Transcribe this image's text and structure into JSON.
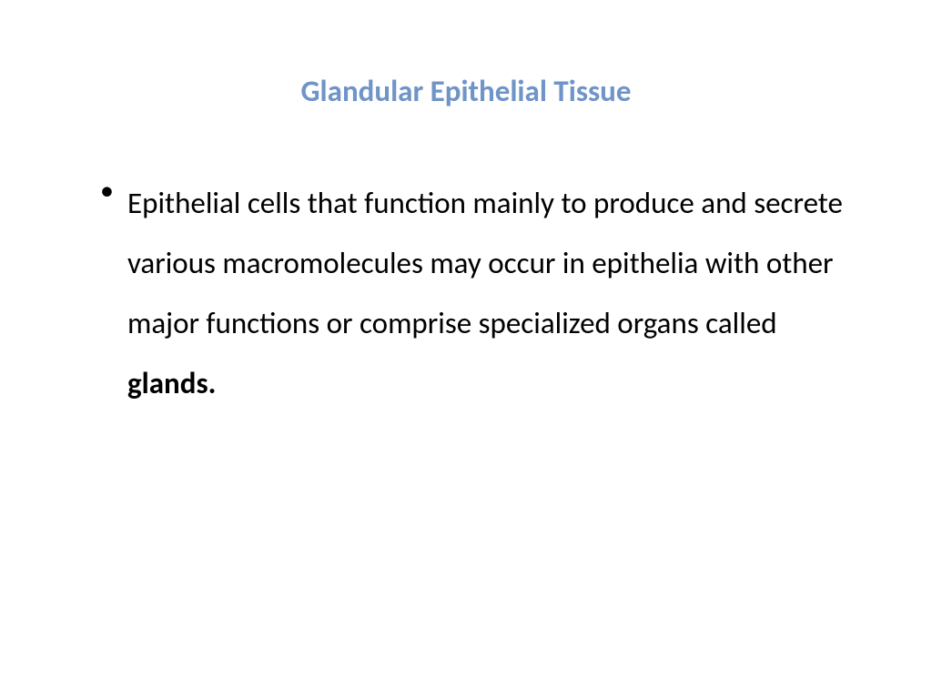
{
  "slide": {
    "title": "Glandular Epithelial Tissue",
    "title_color": "#6f94c7",
    "title_fontsize": 33,
    "body_fontsize": 33,
    "body_color": "#000000",
    "line_height": 2.0,
    "bullet": {
      "text_before_bold": "Epithelial cells that function mainly to produce and secrete various macromolecules may occur in epithelia with other major functions or comprise specialized organs called ",
      "bold_word": "glands."
    }
  }
}
